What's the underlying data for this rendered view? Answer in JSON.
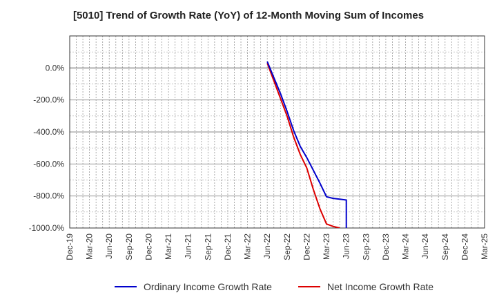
{
  "chart_data": {
    "type": "line",
    "title": "[5010]  Trend of Growth Rate (YoY) of 12-Month Moving Sum of Incomes",
    "xlabel": "",
    "ylabel": "",
    "x_ticks": [
      "Dec-19",
      "Mar-20",
      "Jun-20",
      "Sep-20",
      "Dec-20",
      "Mar-21",
      "Jun-21",
      "Sep-21",
      "Dec-21",
      "Mar-22",
      "Jun-22",
      "Sep-22",
      "Dec-22",
      "Mar-23",
      "Jun-23",
      "Sep-23",
      "Dec-23",
      "Mar-24",
      "Jun-24",
      "Sep-24",
      "Dec-24",
      "Mar-25"
    ],
    "y_ticks": [
      "0.0%",
      "-200.0%",
      "-400.0%",
      "-600.0%",
      "-800.0%",
      "-1000.0%"
    ],
    "ylim": [
      -1000,
      200
    ],
    "y_unit": "%",
    "grid": true,
    "legend_position": "bottom",
    "series": [
      {
        "name": "Ordinary Income Growth Rate",
        "color": "#0000cc",
        "points": [
          [
            "Jun-22",
            40
          ],
          [
            "Jul-22",
            -60
          ],
          [
            "Aug-22",
            -160
          ],
          [
            "Sep-22",
            -270
          ],
          [
            "Oct-22",
            -390
          ],
          [
            "Nov-22",
            -490
          ],
          [
            "Dec-22",
            -560
          ],
          [
            "Jan-23",
            -640
          ],
          [
            "Feb-23",
            -720
          ],
          [
            "Mar-23",
            -805
          ],
          [
            "Apr-23",
            -815
          ],
          [
            "May-23",
            -820
          ],
          [
            "Jun-23",
            -825
          ],
          [
            "Jun-23b",
            -1000
          ]
        ]
      },
      {
        "name": "Net Income Growth Rate",
        "color": "#dd0000",
        "points": [
          [
            "Jun-22",
            30
          ],
          [
            "Jul-22",
            -80
          ],
          [
            "Aug-22",
            -190
          ],
          [
            "Sep-22",
            -300
          ],
          [
            "Oct-22",
            -430
          ],
          [
            "Nov-22",
            -540
          ],
          [
            "Dec-22",
            -625
          ],
          [
            "Jan-23",
            -760
          ],
          [
            "Feb-23",
            -880
          ],
          [
            "Mar-23",
            -975
          ],
          [
            "Apr-23",
            -990
          ],
          [
            "May-23",
            -1000
          ]
        ]
      }
    ]
  }
}
